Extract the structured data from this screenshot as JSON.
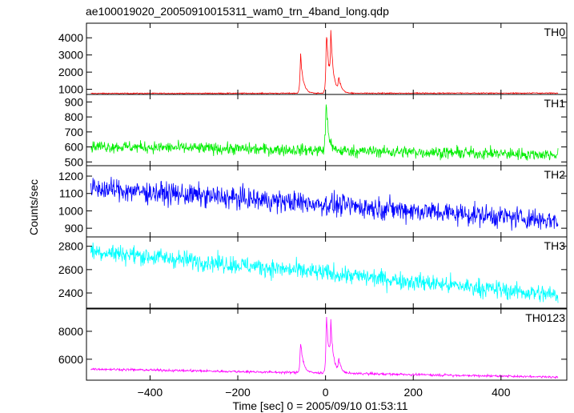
{
  "chart_data": {
    "type": "line",
    "title": "ae100019020_20050910015311_wam0_trn_4band_long.qdp",
    "xlabel": "Time [sec] 0 = 2005/09/10 01:53:11",
    "ylabel": "Counts/sec",
    "xlim": [
      -545,
      550
    ],
    "xticks": [
      -400,
      -200,
      0,
      200,
      400
    ],
    "xtick_labels": [
      "−400",
      "−200",
      "0",
      "200",
      "400"
    ],
    "panels": [
      {
        "name": "TH0",
        "color": "#ff0000",
        "ylim": [
          700,
          4850
        ],
        "yticks": [
          1000,
          2000,
          3000,
          4000
        ],
        "ytick_labels": [
          "1000",
          "2000",
          "3000",
          "4000"
        ],
        "baseline_start": 760,
        "baseline_end": 780,
        "noise": 22,
        "features": [
          {
            "x": -57,
            "peak": 3250
          },
          {
            "x": 2,
            "peak": 4800
          },
          {
            "x": 12,
            "peak": 3800
          },
          {
            "x": 30,
            "peak": 1700
          }
        ]
      },
      {
        "name": "TH1",
        "color": "#00ee00",
        "ylim": [
          475,
          950
        ],
        "yticks": [
          500,
          600,
          700,
          800,
          900
        ],
        "ytick_labels": [
          "500",
          "600",
          "700",
          "800",
          "900"
        ],
        "baseline_start": 605,
        "baseline_end": 548,
        "noise": 28,
        "features": [
          {
            "x": 1,
            "peak": 930
          }
        ]
      },
      {
        "name": "TH2",
        "color": "#0000ff",
        "ylim": [
          850,
          1260
        ],
        "yticks": [
          900,
          1000,
          1100,
          1200
        ],
        "ytick_labels": [
          "900",
          "1000",
          "1100",
          "1200"
        ],
        "baseline_start": 1130,
        "baseline_end": 945,
        "noise": 45,
        "features": []
      },
      {
        "name": "TH3",
        "color": "#00ffff",
        "ylim": [
          2270,
          2880
        ],
        "yticks": [
          2400,
          2600,
          2800
        ],
        "ytick_labels": [
          "2400",
          "2600",
          "2800"
        ],
        "baseline_start": 2760,
        "baseline_end": 2380,
        "noise": 55,
        "features": []
      },
      {
        "name": "TH0123",
        "color": "#ff00ff",
        "ylim": [
          4500,
          9600
        ],
        "yticks": [
          6000,
          8000
        ],
        "ytick_labels": [
          "6000",
          "8000"
        ],
        "baseline_start": 5300,
        "baseline_end": 4720,
        "noise": 60,
        "features": [
          {
            "x": -57,
            "peak": 7600
          },
          {
            "x": 2,
            "peak": 9600
          },
          {
            "x": 12,
            "peak": 8100
          },
          {
            "x": 30,
            "peak": 6000
          }
        ]
      }
    ]
  }
}
